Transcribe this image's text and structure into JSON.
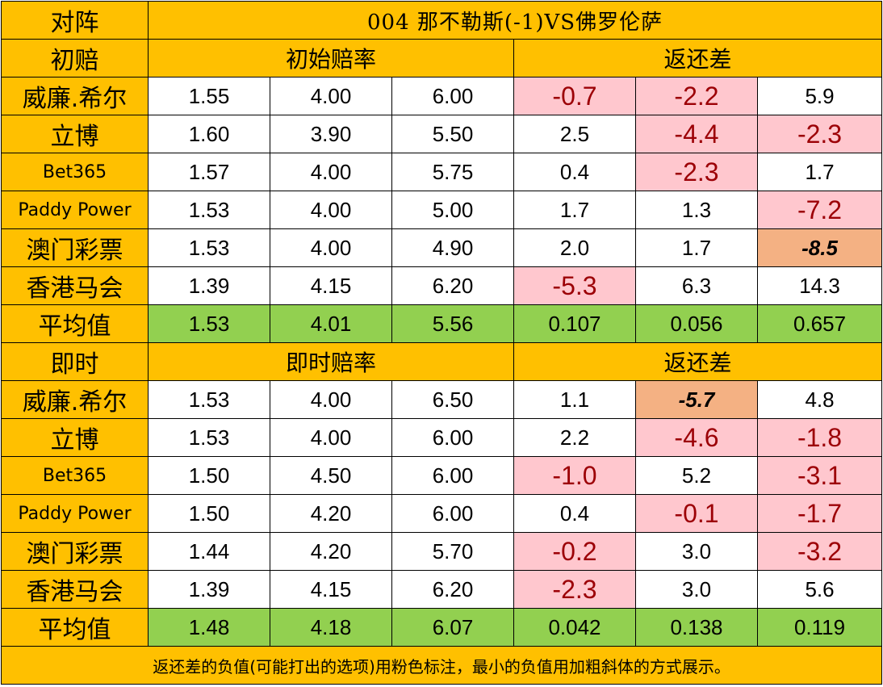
{
  "header": {
    "label": "对阵",
    "title": "004 那不勒斯(-1)VS佛罗伦萨"
  },
  "initial": {
    "label": "初赔",
    "odds_header": "初始赔率",
    "rebate_header": "返还差",
    "rows": [
      {
        "bookmaker": "威廉.希尔",
        "odds": [
          "1.55",
          "4.00",
          "6.00"
        ],
        "diffs": [
          "-0.7",
          "-2.2",
          "5.9"
        ]
      },
      {
        "bookmaker": "立博",
        "odds": [
          "1.60",
          "3.90",
          "5.50"
        ],
        "diffs": [
          "2.5",
          "-4.4",
          "-2.3"
        ]
      },
      {
        "bookmaker": "Bet365",
        "odds": [
          "1.57",
          "4.00",
          "5.75"
        ],
        "diffs": [
          "0.4",
          "-2.3",
          "1.7"
        ]
      },
      {
        "bookmaker": "Paddy Power",
        "odds": [
          "1.53",
          "4.00",
          "5.00"
        ],
        "diffs": [
          "1.7",
          "1.3",
          "-7.2"
        ]
      },
      {
        "bookmaker": "澳门彩票",
        "odds": [
          "1.53",
          "4.00",
          "4.90"
        ],
        "diffs": [
          "2.0",
          "1.7",
          "-8.5"
        ]
      },
      {
        "bookmaker": "香港马会",
        "odds": [
          "1.39",
          "4.15",
          "6.20"
        ],
        "diffs": [
          "-5.3",
          "6.3",
          "14.3"
        ]
      }
    ],
    "average": {
      "label": "平均值",
      "odds": [
        "1.53",
        "4.01",
        "5.56"
      ],
      "diffs": [
        "0.107",
        "0.056",
        "0.657"
      ]
    }
  },
  "live": {
    "label": "即时",
    "odds_header": "即时赔率",
    "rebate_header": "返还差",
    "rows": [
      {
        "bookmaker": "威廉.希尔",
        "odds": [
          "1.53",
          "4.00",
          "6.50"
        ],
        "diffs": [
          "1.1",
          "-5.7",
          "4.8"
        ]
      },
      {
        "bookmaker": "立博",
        "odds": [
          "1.53",
          "4.00",
          "6.00"
        ],
        "diffs": [
          "2.2",
          "-4.6",
          "-1.8"
        ]
      },
      {
        "bookmaker": "Bet365",
        "odds": [
          "1.50",
          "4.50",
          "6.00"
        ],
        "diffs": [
          "-1.0",
          "5.2",
          "-3.1"
        ]
      },
      {
        "bookmaker": "Paddy Power",
        "odds": [
          "1.50",
          "4.20",
          "6.00"
        ],
        "diffs": [
          "0.4",
          "-0.1",
          "-1.7"
        ]
      },
      {
        "bookmaker": "澳门彩票",
        "odds": [
          "1.44",
          "4.20",
          "5.70"
        ],
        "diffs": [
          "-0.2",
          "3.0",
          "-3.2"
        ]
      },
      {
        "bookmaker": "香港马会",
        "odds": [
          "1.39",
          "4.15",
          "6.20"
        ],
        "diffs": [
          "-2.3",
          "3.0",
          "5.6"
        ]
      }
    ],
    "average": {
      "label": "平均值",
      "odds": [
        "1.48",
        "4.18",
        "6.07"
      ],
      "diffs": [
        "0.042",
        "0.138",
        "0.119"
      ]
    }
  },
  "footnote": "返还差的负值(可能打出的选项)用粉色标注，最小的负值用加粗斜体的方式展示。",
  "colors": {
    "header_bg": "#FFC000",
    "average_bg": "#92D050",
    "negative_bg": "#FFC7CE",
    "negative_text": "#9C0006",
    "minimum_bg": "#F4B183"
  }
}
